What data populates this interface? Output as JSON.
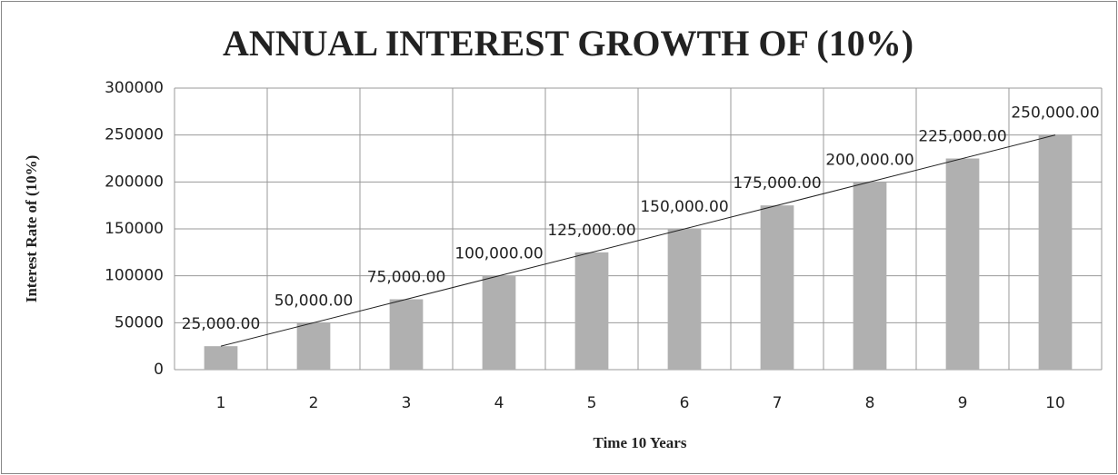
{
  "chart_data": {
    "type": "bar",
    "title": "ANNUAL INTEREST GROWTH OF (10%)",
    "x_label": "Time 10 Years",
    "y_label": "Interest Rate of (10%)",
    "categories": [
      "1",
      "2",
      "3",
      "4",
      "5",
      "6",
      "7",
      "8",
      "9",
      "10"
    ],
    "values": [
      25000,
      50000,
      75000,
      100000,
      125000,
      150000,
      175000,
      200000,
      225000,
      250000
    ],
    "value_labels": [
      "25,000.00",
      "50,000.00",
      "75,000.00",
      "100,000.00",
      "125,000.00",
      "150,000.00",
      "175,000.00",
      "200,000.00",
      "225,000.00",
      "250,000.00"
    ],
    "color": "#b0b0b0",
    "ylim": [
      0,
      300000
    ],
    "yticks": [
      0,
      50000,
      100000,
      150000,
      200000,
      250000,
      300000
    ],
    "grid": true,
    "trendline": true
  }
}
